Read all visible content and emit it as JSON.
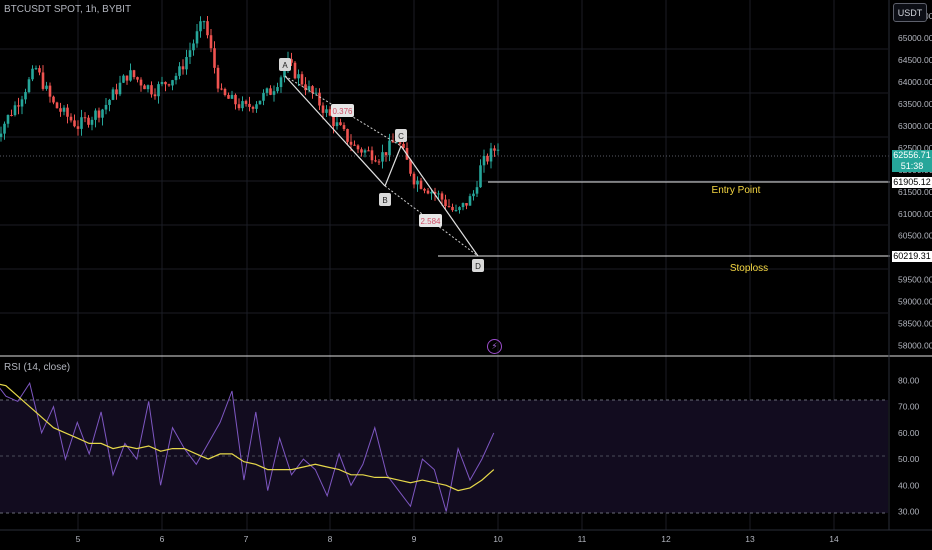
{
  "chart": {
    "symbol_title": "BTCUSDT SPOT, 1h, BYBIT",
    "currency": "USDT",
    "current_price": "62556.71",
    "countdown": "51:38",
    "entry_price_tag": "61905.12",
    "stop_price_tag": "60219.31",
    "alert_icon": "lightning-icon",
    "colors": {
      "background": "#000000",
      "up_candle": "#26a69a",
      "down_candle": "#ef5350",
      "rsi_line": "#7e57c2",
      "rsi_ma": "#e6d84a",
      "text_label": "#f5d742"
    }
  },
  "chart_data": [
    {
      "type": "candlestick",
      "price_axis": {
        "ticks": [
          "65500.00",
          "65000.00",
          "64500.00",
          "64000.00",
          "63500.00",
          "63000.00",
          "62500.00",
          "62000.00",
          "61500.00",
          "61000.00",
          "60500.00",
          "60000.00",
          "59500.00",
          "59000.00",
          "58500.00",
          "58000.00"
        ],
        "ylim": [
          57900,
          65750
        ]
      },
      "time_axis": {
        "ticks": [
          "5",
          "6",
          "7",
          "8",
          "9",
          "10",
          "11",
          "12",
          "13",
          "14"
        ]
      },
      "approx_close_path": [
        {
          "x": "4.0",
          "y": 62700
        },
        {
          "x": "4.3",
          "y": 63600
        },
        {
          "x": "4.5",
          "y": 64300
        },
        {
          "x": "4.7",
          "y": 63500
        },
        {
          "x": "5.0",
          "y": 63000
        },
        {
          "x": "5.3",
          "y": 63400
        },
        {
          "x": "5.6",
          "y": 64200
        },
        {
          "x": "5.9",
          "y": 63800
        },
        {
          "x": "6.2",
          "y": 64200
        },
        {
          "x": "6.5",
          "y": 65400
        },
        {
          "x": "6.7",
          "y": 63700
        },
        {
          "x": "7.0",
          "y": 63400
        },
        {
          "x": "7.3",
          "y": 63800
        },
        {
          "x": "7.5",
          "y": 64400
        },
        {
          "x": "7.8",
          "y": 63700
        },
        {
          "x": "8.0",
          "y": 63200
        },
        {
          "x": "8.3",
          "y": 62500
        },
        {
          "x": "8.6",
          "y": 62300
        },
        {
          "x": "8.8",
          "y": 62700
        },
        {
          "x": "9.0",
          "y": 61800
        },
        {
          "x": "9.3",
          "y": 61400
        },
        {
          "x": "9.5",
          "y": 61000
        },
        {
          "x": "9.7",
          "y": 61400
        },
        {
          "x": "9.8",
          "y": 62100
        },
        {
          "x": "10.0",
          "y": 62556
        }
      ],
      "pattern_points": [
        {
          "label": "A",
          "x": "7.5",
          "y": 64400
        },
        {
          "label": "B",
          "x": "8.6",
          "y": 62000
        },
        {
          "label": "C",
          "x": "8.9",
          "y": 62900
        },
        {
          "label": "D",
          "x": "9.8",
          "y": 60300
        }
      ],
      "ratios": [
        {
          "label": "0.376",
          "between": "A-C"
        },
        {
          "label": "2.584",
          "between": "B-D"
        }
      ],
      "levels": [
        {
          "label": "Entry Point",
          "price": 61905.12
        },
        {
          "label": "Stoploss",
          "price": 60219.31
        }
      ]
    },
    {
      "type": "line",
      "title": "RSI (14, close)",
      "y_ticks": [
        "80.00",
        "70.00",
        "60.00",
        "50.00",
        "40.00",
        "30.00"
      ],
      "ylim": [
        26,
        84
      ],
      "band": [
        30,
        70
      ],
      "mid": 50,
      "series": [
        {
          "name": "rsi",
          "values": [
            80,
            74,
            72,
            79,
            60,
            70,
            50,
            64,
            52,
            68,
            44,
            56,
            50,
            72,
            40,
            62,
            54,
            48,
            56,
            64,
            76,
            42,
            68,
            38,
            58,
            44,
            50,
            46,
            36,
            52,
            40,
            48,
            62,
            44,
            38,
            32,
            50,
            46,
            30,
            54,
            42,
            50,
            60
          ]
        },
        {
          "name": "rsi_ma",
          "values": [
            79,
            78,
            74,
            70,
            66,
            62,
            60,
            58,
            56,
            56,
            54,
            55,
            54,
            55,
            53,
            54,
            54,
            52,
            50,
            52,
            52,
            49,
            48,
            46,
            46,
            46,
            47,
            48,
            47,
            46,
            44,
            44,
            43,
            43,
            42,
            41,
            42,
            41,
            40,
            38,
            39,
            42,
            46
          ]
        }
      ]
    }
  ]
}
